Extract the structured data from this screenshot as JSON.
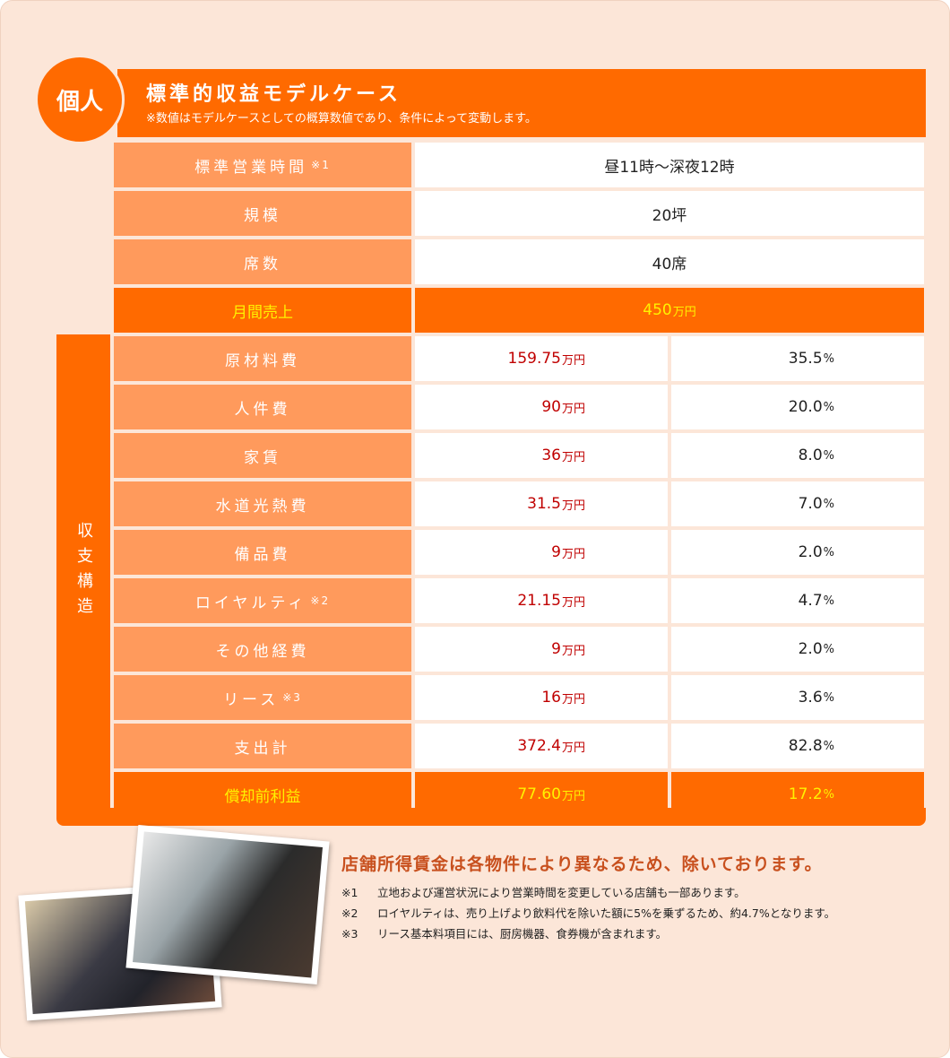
{
  "badge": "個人",
  "header": {
    "title": "標準的収益モデルケース",
    "subtitle": "※数値はモデルケースとしての概算数値であり、条件によって変動します。"
  },
  "units": {
    "amount": "万円",
    "percent": "%"
  },
  "info_rows": [
    {
      "label": "標準営業時間",
      "note": "※1",
      "value": "昼11時～深夜12時"
    },
    {
      "label": "規模",
      "value": "20坪"
    },
    {
      "label": "席数",
      "value": "40席"
    }
  ],
  "sales": {
    "label": "月間売上",
    "value": "450"
  },
  "section_label": "収支構造",
  "cost_rows": [
    {
      "label": "原材料費",
      "amount": "159.75",
      "percent": "35.5"
    },
    {
      "label": "人件費",
      "amount": "90",
      "percent": "20.0"
    },
    {
      "label": "家賃",
      "amount": "36",
      "percent": "8.0"
    },
    {
      "label": "水道光熱費",
      "amount": "31.5",
      "percent": "7.0"
    },
    {
      "label": "備品費",
      "amount": "9",
      "percent": "2.0"
    },
    {
      "label": "ロイヤルティ",
      "note": "※2",
      "amount": "21.15",
      "percent": "4.7"
    },
    {
      "label": "その他経費",
      "amount": "9",
      "percent": "2.0"
    },
    {
      "label": "リース",
      "note": "※3",
      "amount": "16",
      "percent": "3.6"
    },
    {
      "label": "支出計",
      "amount": "372.4",
      "percent": "82.8"
    }
  ],
  "profit": {
    "label": "償却前利益",
    "amount": "77.60",
    "percent": "17.2"
  },
  "footer": {
    "heading": "店舗所得賃金は各物件により異なるため、除いております。",
    "notes": [
      {
        "mark": "※1",
        "text": "立地および運営状況により営業時間を変更している店舗も一部あります。"
      },
      {
        "mark": "※2",
        "text": "ロイヤルティは、売り上げより飲料代を除いた額に5%を乗ずるため、約4.7%となります。"
      },
      {
        "mark": "※3",
        "text": "リース基本料項目には、厨房機器、食券機が含まれます。"
      }
    ]
  }
}
